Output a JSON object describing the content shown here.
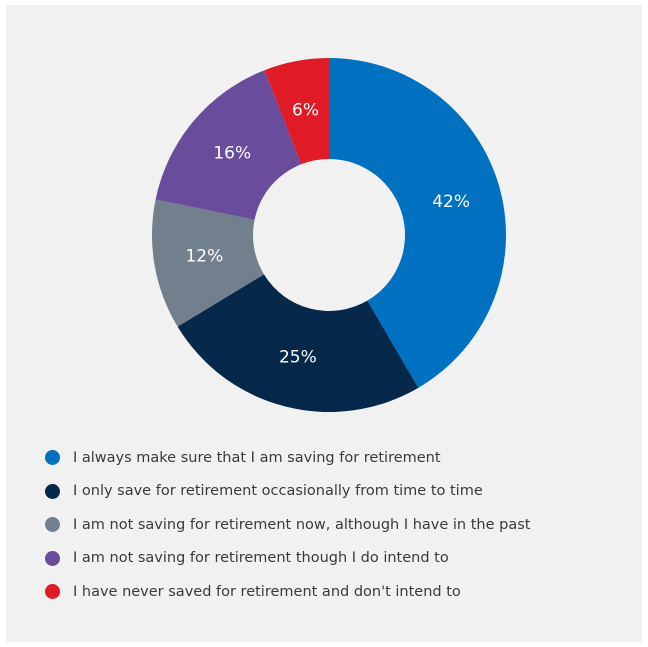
{
  "chart_data": {
    "type": "pie",
    "donut": true,
    "categories": [
      "I always make sure that I am saving for retirement",
      "I only save for retirement occasionally from time to time",
      "I am not saving for retirement now, although I have in the past",
      "I am not saving for retirement though I do intend to",
      "I have never saved for retirement and don't intend to"
    ],
    "values": [
      42,
      25,
      12,
      16,
      6
    ],
    "value_labels": [
      "42%",
      "25%",
      "12%",
      "16%",
      "6%"
    ],
    "colors": [
      "#0070c0",
      "#06284b",
      "#71808c",
      "#6a4c9c",
      "#e01b25"
    ],
    "legend_position": "bottom",
    "start_angle": "12 o'clock, clockwise",
    "title": ""
  }
}
